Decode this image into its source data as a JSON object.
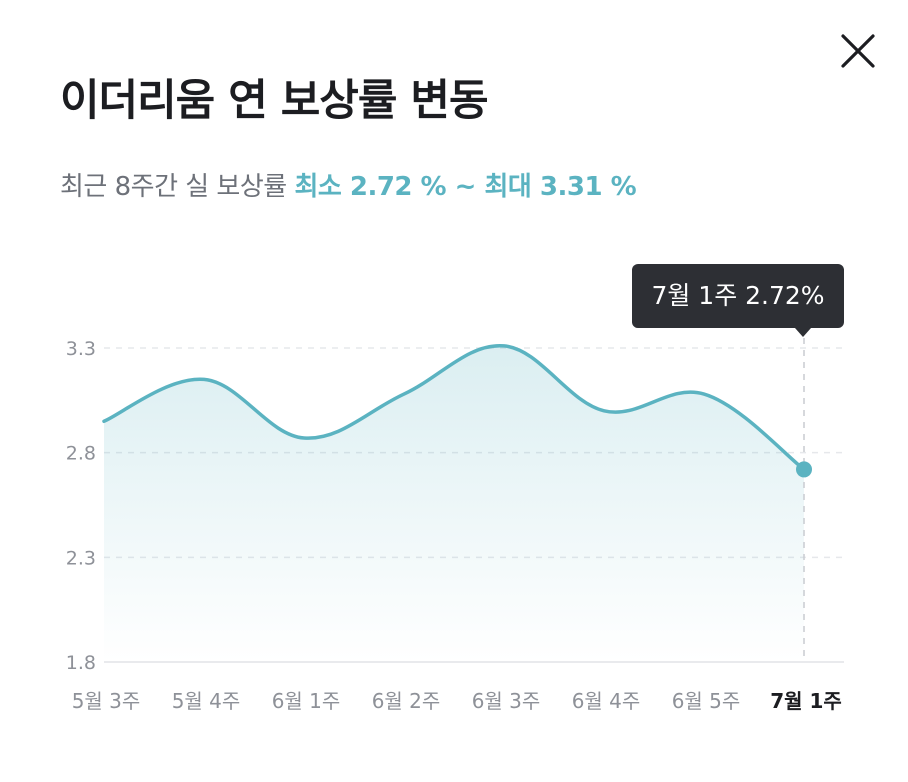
{
  "header": {
    "title": "이더리움 연 보상률 변동",
    "subtitle_prefix": "최근 8주간 실 보상률",
    "subtitle_range": "최소 2.72 % ~ 최대 3.31 %"
  },
  "tooltip": {
    "text": "7월 1주 2.72%"
  },
  "colors": {
    "accent": "#5bb3c1",
    "tooltip_bg": "#2d2f34",
    "text": "#1c1d21",
    "muted": "#8e9198"
  },
  "icons": {
    "close": "close-icon"
  },
  "chart_data": {
    "type": "area",
    "categories": [
      "5월 3주",
      "5월 4주",
      "6월 1주",
      "6월 2주",
      "6월 3주",
      "6월 4주",
      "6월 5주",
      "7월 1주"
    ],
    "values": [
      2.95,
      3.15,
      2.87,
      3.08,
      3.31,
      3.0,
      3.08,
      2.72
    ],
    "yticks": [
      "3.3",
      "2.8",
      "2.3",
      "1.8"
    ],
    "ylim": [
      1.8,
      3.3
    ],
    "grid": true,
    "highlight_index": 7
  }
}
